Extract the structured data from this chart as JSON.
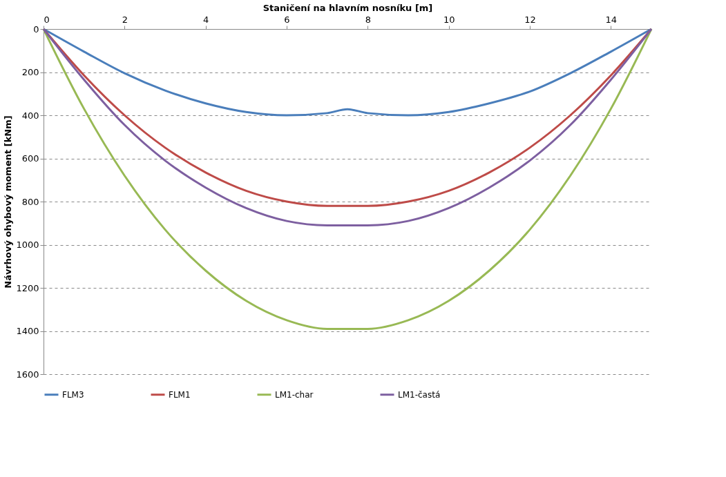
{
  "chart_data": {
    "type": "line",
    "xlabel": "Staničení na hlavním  nosníku  [m]",
    "ylabel": "Návrhový ohybový  moment  [kNm]",
    "xlim": [
      0,
      15
    ],
    "xticks": [
      0,
      2,
      4,
      6,
      8,
      10,
      12,
      14
    ],
    "ylim": [
      1600,
      0
    ],
    "yticks": [
      0,
      200,
      400,
      600,
      800,
      1000,
      1200,
      1400,
      1600
    ],
    "grid": "y",
    "legend": "bottom",
    "marker": "none",
    "line_style": "solid",
    "series": [
      {
        "name": "FLM3",
        "color": "#4a7ebb",
        "x": [
          0,
          1,
          2,
          3,
          4,
          5,
          6,
          7,
          7.5,
          8,
          9,
          10,
          11,
          12,
          13,
          14,
          15
        ],
        "values": [
          0,
          105,
          205,
          285,
          345,
          385,
          400,
          390,
          372,
          390,
          400,
          385,
          345,
          290,
          205,
          105,
          0
        ]
      },
      {
        "name": "FLM1",
        "color": "#be4b48",
        "x": [
          0,
          1,
          2,
          3,
          4,
          5,
          6,
          7,
          8,
          9,
          10,
          11,
          12,
          13,
          14,
          15
        ],
        "values": [
          0,
          215,
          400,
          550,
          665,
          750,
          800,
          820,
          820,
          800,
          750,
          665,
          550,
          400,
          215,
          0
        ]
      },
      {
        "name": "LM1-char",
        "color": "#98b954",
        "x": [
          0,
          1,
          2,
          3,
          4,
          5,
          6,
          7,
          8,
          9,
          10,
          11,
          12,
          13,
          14,
          15
        ],
        "values": [
          0,
          370,
          680,
          930,
          1120,
          1260,
          1350,
          1390,
          1390,
          1350,
          1260,
          1120,
          930,
          680,
          370,
          0
        ]
      },
      {
        "name": "LM1-častá",
        "color": "#7d5fa0",
        "x": [
          0,
          1,
          2,
          3,
          4,
          5,
          6,
          7,
          8,
          9,
          10,
          11,
          12,
          13,
          14,
          15
        ],
        "values": [
          0,
          235,
          445,
          610,
          735,
          830,
          890,
          910,
          910,
          890,
          830,
          735,
          610,
          445,
          235,
          0
        ]
      }
    ]
  }
}
